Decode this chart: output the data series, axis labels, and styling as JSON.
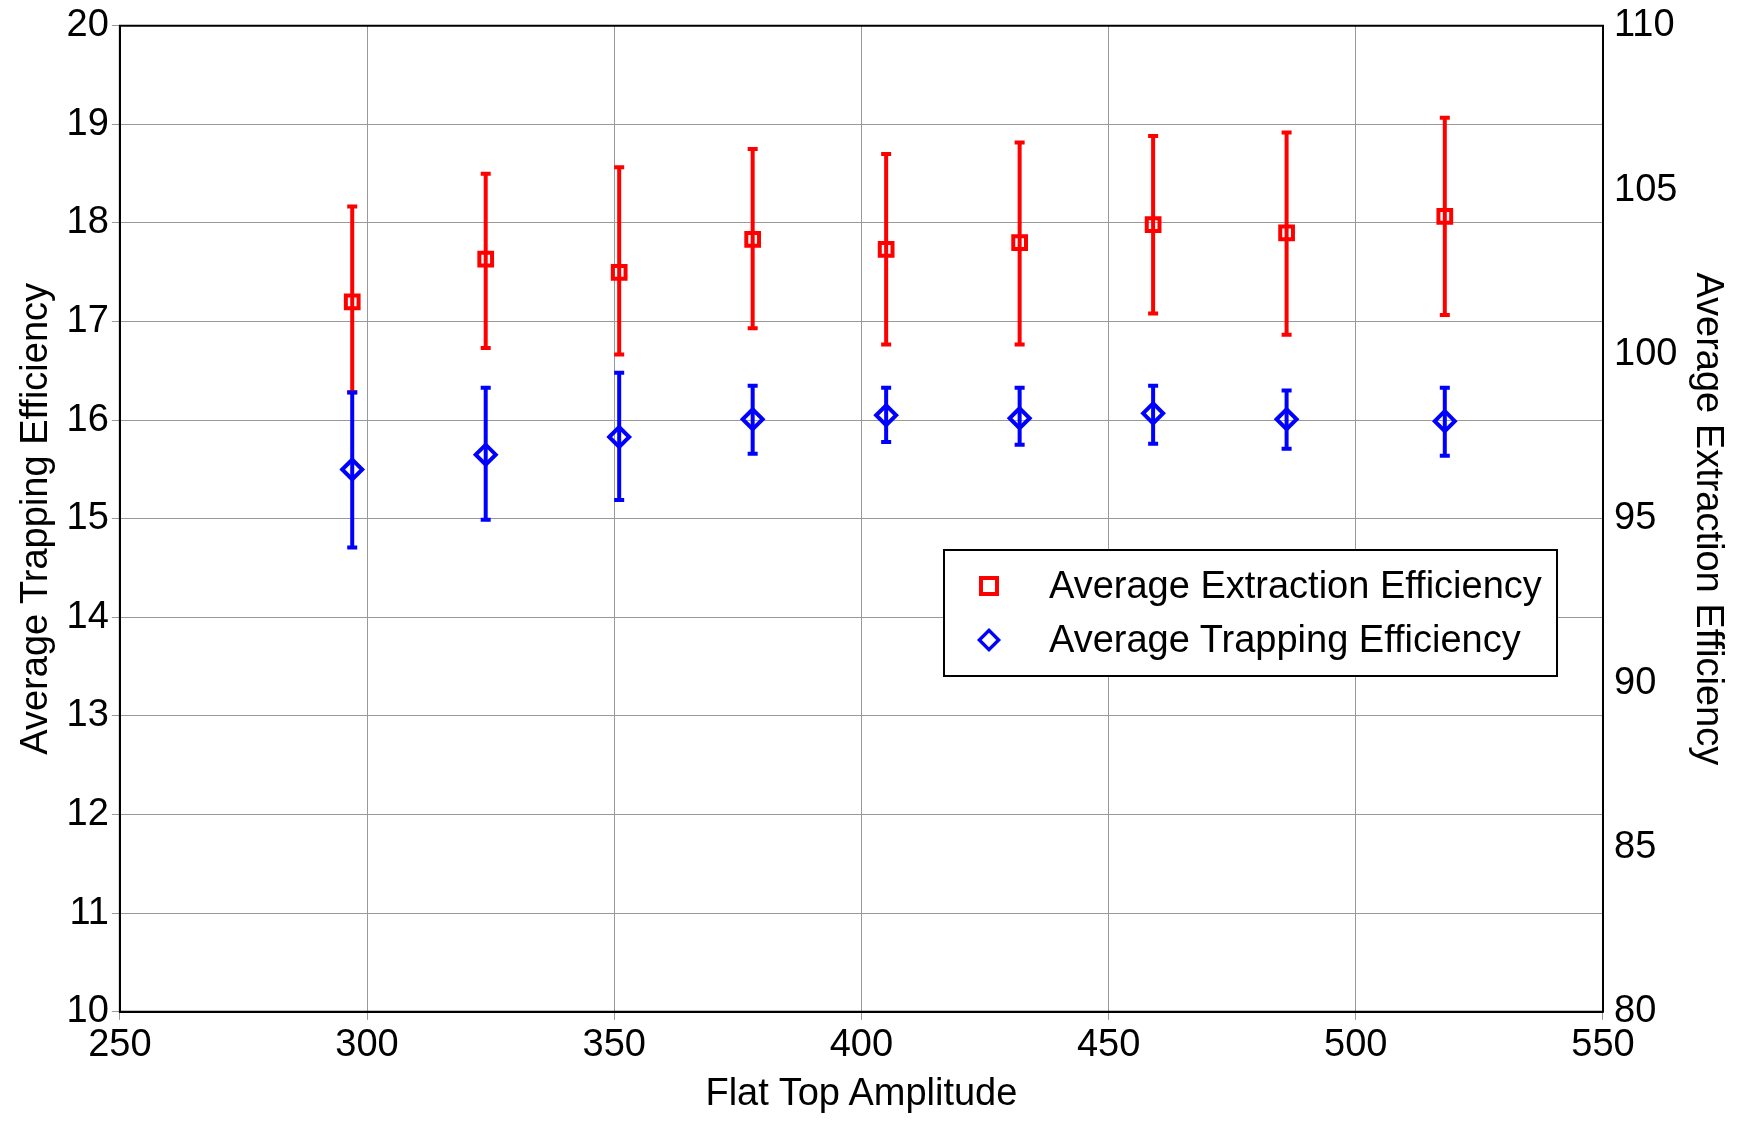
{
  "chart_data": {
    "type": "scatter",
    "xlabel": "Flat Top Amplitude",
    "ylabel": "Average Trapping Efficiency",
    "y2label": "Average Extraction Efficiency",
    "x": [
      297,
      324,
      351,
      378,
      405,
      432,
      459,
      486,
      518
    ],
    "series": [
      {
        "name": "Average Extraction Efficiency",
        "color": "#ff0000",
        "axis": "y2",
        "marker": "square",
        "values": [
          101.6,
          102.9,
          102.5,
          103.5,
          103.2,
          103.4,
          103.95,
          103.7,
          104.2
        ],
        "errors": [
          [
            98.85,
            104.5
          ],
          [
            100.2,
            105.5
          ],
          [
            100.0,
            105.7
          ],
          [
            100.8,
            106.25
          ],
          [
            100.3,
            106.1
          ],
          [
            100.3,
            106.45
          ],
          [
            101.25,
            106.65
          ],
          [
            100.6,
            106.75
          ],
          [
            101.2,
            107.2
          ]
        ]
      },
      {
        "name": "Average Trapping Efficiency",
        "color": "#0000ff",
        "axis": "y",
        "marker": "diamond",
        "values": [
          15.5,
          15.65,
          15.83,
          16.01,
          16.05,
          16.02,
          16.07,
          16.01,
          15.99
        ],
        "errors": [
          [
            14.71,
            16.28
          ],
          [
            14.99,
            16.33
          ],
          [
            15.19,
            16.48
          ],
          [
            15.66,
            16.35
          ],
          [
            15.78,
            16.33
          ],
          [
            15.75,
            16.33
          ],
          [
            15.76,
            16.35
          ],
          [
            15.71,
            16.3
          ],
          [
            15.64,
            16.33
          ]
        ]
      }
    ],
    "xlim": [
      250,
      550
    ],
    "xticks": [
      250,
      300,
      350,
      400,
      450,
      500,
      550
    ],
    "ylim": [
      10,
      20
    ],
    "yticks": [
      10,
      11,
      12,
      13,
      14,
      15,
      16,
      17,
      18,
      19,
      20
    ],
    "y2lim": [
      80,
      110
    ],
    "y2ticks": [
      80,
      85,
      90,
      95,
      100,
      105,
      110
    ],
    "grid": true,
    "legend": "right"
  }
}
